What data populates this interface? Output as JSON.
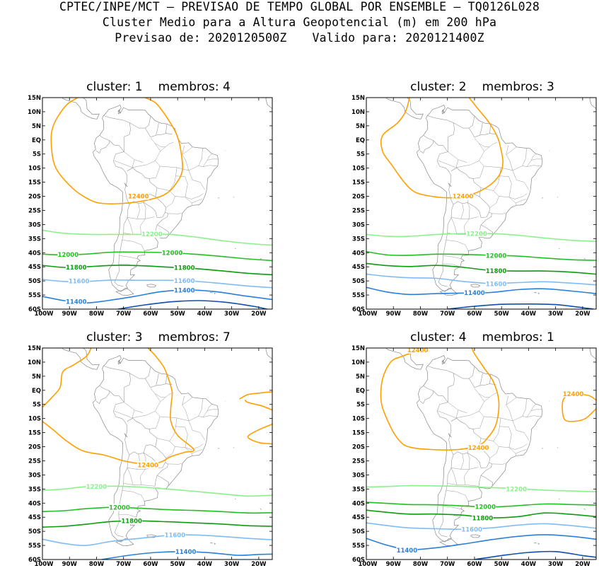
{
  "header": {
    "line1": "CPTEC/INPE/MCT – PREVISAO DE TEMPO GLOBAL POR ENSEMBLE – TQ0126L028",
    "line2": "Cluster Medio para a Altura Geopotencial (m) em 200 hPa",
    "forecast_label": "Previsao de: 2020120500Z",
    "valid_label": "Valido para: 2020121400Z"
  },
  "axes": {
    "lat_ticks": [
      "15N",
      "10N",
      "5N",
      "EQ",
      "5S",
      "10S",
      "15S",
      "20S",
      "25S",
      "30S",
      "35S",
      "40S",
      "45S",
      "50S",
      "55S",
      "60S"
    ],
    "lon_ticks": [
      "100W",
      "90W",
      "80W",
      "70W",
      "60W",
      "50W",
      "40W",
      "30W",
      "20W"
    ]
  },
  "colors": {
    "12400": "#ff9f00",
    "12200": "#8cf08c",
    "12000": "#23be23",
    "11800": "#0f9b0f",
    "11600": "#7fbcf4",
    "11400": "#2a80d8",
    "11200": "#0e4fb0",
    "coast": "#888888"
  },
  "panels": [
    {
      "cluster_label": "cluster:",
      "cluster_num": "1",
      "members_label": "membros:",
      "members_num": "4"
    },
    {
      "cluster_label": "cluster:",
      "cluster_num": "2",
      "members_label": "membros:",
      "members_num": "3"
    },
    {
      "cluster_label": "cluster:",
      "cluster_num": "3",
      "members_label": "membros:",
      "members_num": "7"
    },
    {
      "cluster_label": "cluster:",
      "cluster_num": "4",
      "members_label": "membros:",
      "members_num": "1"
    }
  ],
  "contour_labels": [
    "12400",
    "12200",
    "12000",
    "11800",
    "11600",
    "11400"
  ]
}
